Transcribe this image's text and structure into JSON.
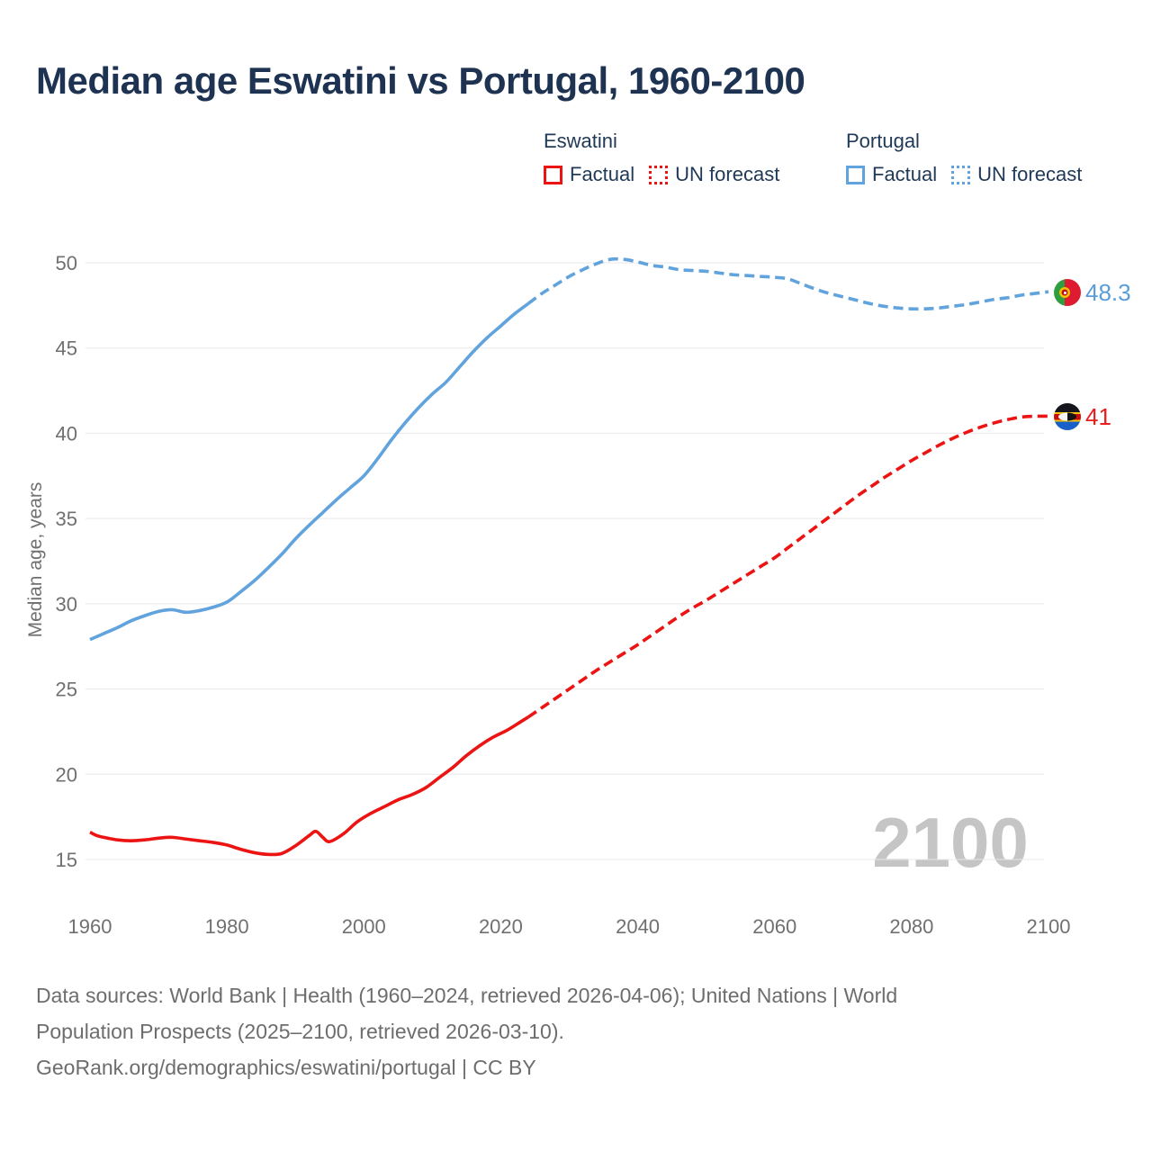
{
  "title": "Median age Eswatini vs Portugal, 1960-2100",
  "legend": {
    "groups": [
      {
        "name": "Eswatini",
        "color": "#ec1313",
        "items": [
          {
            "label": "Factual",
            "style": "solid"
          },
          {
            "label": "UN forecast",
            "style": "dotted"
          }
        ]
      },
      {
        "name": "Portugal",
        "color": "#61a3dc",
        "items": [
          {
            "label": "Factual",
            "style": "solid"
          },
          {
            "label": "UN forecast",
            "style": "dotted"
          }
        ]
      }
    ]
  },
  "chart_data": {
    "type": "line",
    "title": "Median age Eswatini vs Portugal, 1960-2100",
    "xlabel": "",
    "ylabel": "Median age, years",
    "xlim": [
      1960,
      2100
    ],
    "ylim": [
      15,
      50
    ],
    "x_ticks": [
      1960,
      1980,
      2000,
      2020,
      2040,
      2060,
      2080,
      2100
    ],
    "y_ticks": [
      15,
      20,
      25,
      30,
      35,
      40,
      45,
      50
    ],
    "grid": "horizontal",
    "watermark": "2100",
    "series": [
      {
        "name": "Portugal Factual",
        "color": "#61a3dc",
        "dash": false,
        "points": [
          [
            1960,
            27.9
          ],
          [
            1962,
            28.25
          ],
          [
            1964,
            28.6
          ],
          [
            1966,
            29.0
          ],
          [
            1968,
            29.3
          ],
          [
            1970,
            29.55
          ],
          [
            1972,
            29.65
          ],
          [
            1974,
            29.5
          ],
          [
            1976,
            29.6
          ],
          [
            1978,
            29.8
          ],
          [
            1980,
            30.1
          ],
          [
            1982,
            30.7
          ],
          [
            1984,
            31.35
          ],
          [
            1986,
            32.1
          ],
          [
            1988,
            32.9
          ],
          [
            1990,
            33.8
          ],
          [
            1992,
            34.6
          ],
          [
            1994,
            35.35
          ],
          [
            1996,
            36.1
          ],
          [
            1998,
            36.8
          ],
          [
            2000,
            37.5
          ],
          [
            2002,
            38.5
          ],
          [
            2004,
            39.6
          ],
          [
            2006,
            40.6
          ],
          [
            2008,
            41.5
          ],
          [
            2010,
            42.3
          ],
          [
            2012,
            43.0
          ],
          [
            2014,
            43.9
          ],
          [
            2016,
            44.8
          ],
          [
            2018,
            45.6
          ],
          [
            2020,
            46.3
          ],
          [
            2022,
            47.0
          ],
          [
            2024,
            47.6
          ]
        ]
      },
      {
        "name": "Portugal UN forecast",
        "color": "#61a3dc",
        "dash": true,
        "points": [
          [
            2024,
            47.6
          ],
          [
            2026,
            48.2
          ],
          [
            2028,
            48.7
          ],
          [
            2030,
            49.2
          ],
          [
            2032,
            49.6
          ],
          [
            2034,
            49.95
          ],
          [
            2036,
            50.2
          ],
          [
            2038,
            50.2
          ],
          [
            2040,
            50.05
          ],
          [
            2042,
            49.85
          ],
          [
            2044,
            49.75
          ],
          [
            2046,
            49.6
          ],
          [
            2048,
            49.55
          ],
          [
            2050,
            49.5
          ],
          [
            2052,
            49.4
          ],
          [
            2054,
            49.3
          ],
          [
            2056,
            49.25
          ],
          [
            2058,
            49.2
          ],
          [
            2060,
            49.15
          ],
          [
            2062,
            49.05
          ],
          [
            2064,
            48.75
          ],
          [
            2066,
            48.45
          ],
          [
            2068,
            48.2
          ],
          [
            2070,
            48.0
          ],
          [
            2072,
            47.8
          ],
          [
            2074,
            47.6
          ],
          [
            2076,
            47.45
          ],
          [
            2078,
            47.35
          ],
          [
            2080,
            47.3
          ],
          [
            2082,
            47.3
          ],
          [
            2084,
            47.35
          ],
          [
            2086,
            47.45
          ],
          [
            2088,
            47.55
          ],
          [
            2090,
            47.7
          ],
          [
            2092,
            47.85
          ],
          [
            2094,
            47.95
          ],
          [
            2096,
            48.1
          ],
          [
            2098,
            48.2
          ],
          [
            2100,
            48.3
          ]
        ]
      },
      {
        "name": "Eswatini Factual",
        "color": "#ec1313",
        "dash": false,
        "points": [
          [
            1960,
            16.6
          ],
          [
            1961,
            16.4
          ],
          [
            1962,
            16.3
          ],
          [
            1964,
            16.15
          ],
          [
            1966,
            16.1
          ],
          [
            1968,
            16.15
          ],
          [
            1970,
            16.25
          ],
          [
            1972,
            16.3
          ],
          [
            1974,
            16.2
          ],
          [
            1976,
            16.1
          ],
          [
            1978,
            16.0
          ],
          [
            1980,
            15.85
          ],
          [
            1982,
            15.6
          ],
          [
            1984,
            15.4
          ],
          [
            1986,
            15.3
          ],
          [
            1988,
            15.35
          ],
          [
            1990,
            15.8
          ],
          [
            1992,
            16.4
          ],
          [
            1993,
            16.65
          ],
          [
            1994,
            16.3
          ],
          [
            1995,
            16.05
          ],
          [
            1997,
            16.5
          ],
          [
            1999,
            17.2
          ],
          [
            2001,
            17.7
          ],
          [
            2003,
            18.1
          ],
          [
            2005,
            18.5
          ],
          [
            2007,
            18.8
          ],
          [
            2009,
            19.2
          ],
          [
            2011,
            19.8
          ],
          [
            2013,
            20.4
          ],
          [
            2015,
            21.1
          ],
          [
            2017,
            21.7
          ],
          [
            2019,
            22.2
          ],
          [
            2021,
            22.6
          ],
          [
            2023,
            23.1
          ],
          [
            2024,
            23.35
          ]
        ]
      },
      {
        "name": "Eswatini UN forecast",
        "color": "#ec1313",
        "dash": true,
        "points": [
          [
            2024,
            23.35
          ],
          [
            2026,
            23.9
          ],
          [
            2028,
            24.45
          ],
          [
            2030,
            25.0
          ],
          [
            2032,
            25.55
          ],
          [
            2034,
            26.1
          ],
          [
            2036,
            26.6
          ],
          [
            2038,
            27.1
          ],
          [
            2040,
            27.6
          ],
          [
            2042,
            28.15
          ],
          [
            2044,
            28.7
          ],
          [
            2046,
            29.25
          ],
          [
            2048,
            29.75
          ],
          [
            2050,
            30.2
          ],
          [
            2052,
            30.7
          ],
          [
            2054,
            31.2
          ],
          [
            2056,
            31.7
          ],
          [
            2058,
            32.2
          ],
          [
            2060,
            32.7
          ],
          [
            2062,
            33.3
          ],
          [
            2064,
            33.9
          ],
          [
            2066,
            34.5
          ],
          [
            2068,
            35.1
          ],
          [
            2070,
            35.7
          ],
          [
            2072,
            36.3
          ],
          [
            2074,
            36.85
          ],
          [
            2076,
            37.4
          ],
          [
            2078,
            37.9
          ],
          [
            2080,
            38.4
          ],
          [
            2082,
            38.85
          ],
          [
            2084,
            39.3
          ],
          [
            2086,
            39.7
          ],
          [
            2088,
            40.05
          ],
          [
            2090,
            40.35
          ],
          [
            2092,
            40.6
          ],
          [
            2094,
            40.8
          ],
          [
            2096,
            40.95
          ],
          [
            2098,
            41.0
          ],
          [
            2100,
            41.0
          ]
        ]
      }
    ],
    "end_labels": [
      {
        "series": "Portugal",
        "text": "48.3",
        "value": 48.3,
        "color": "#5b9dd8",
        "flag": "portugal-flag-icon"
      },
      {
        "series": "Eswatini",
        "text": "41",
        "value": 41,
        "color": "#ea1d1d",
        "flag": "eswatini-flag-icon"
      }
    ]
  },
  "footer": {
    "lines": [
      "Data sources: World Bank | Health (1960–2024, retrieved 2026-04-06); United Nations | World",
      "Population Prospects (2025–2100, retrieved 2026-03-10).",
      "GeoRank.org/demographics/eswatini/portugal | CC BY"
    ]
  }
}
